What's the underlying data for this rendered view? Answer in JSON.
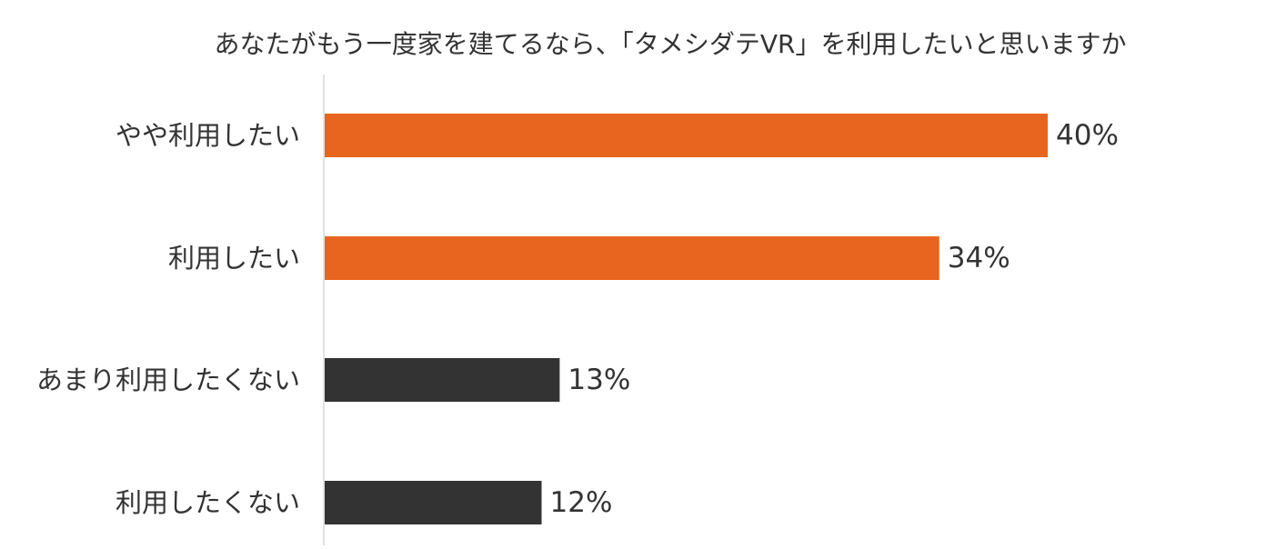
{
  "chart_data": {
    "type": "bar",
    "orientation": "horizontal",
    "title": "あなたがもう一度家を建てるなら、「タメシダテVR」を利用したいと思いますか",
    "categories": [
      "やや利用したい",
      "利用したい",
      "あまり利用したくない",
      "利用したくない"
    ],
    "values": [
      40,
      34,
      13,
      12
    ],
    "value_labels": [
      "40%",
      "34%",
      "13%",
      "12%"
    ],
    "unit": "%",
    "bar_colors": [
      "#E8651F",
      "#E8651F",
      "#333333",
      "#333333"
    ],
    "xlim": [
      0,
      50
    ],
    "grid": false,
    "legend": "none"
  },
  "colors": {
    "positive": "#E8651F",
    "negative": "#333333",
    "axis_line": "#D9D9D9",
    "text": "#333333"
  }
}
